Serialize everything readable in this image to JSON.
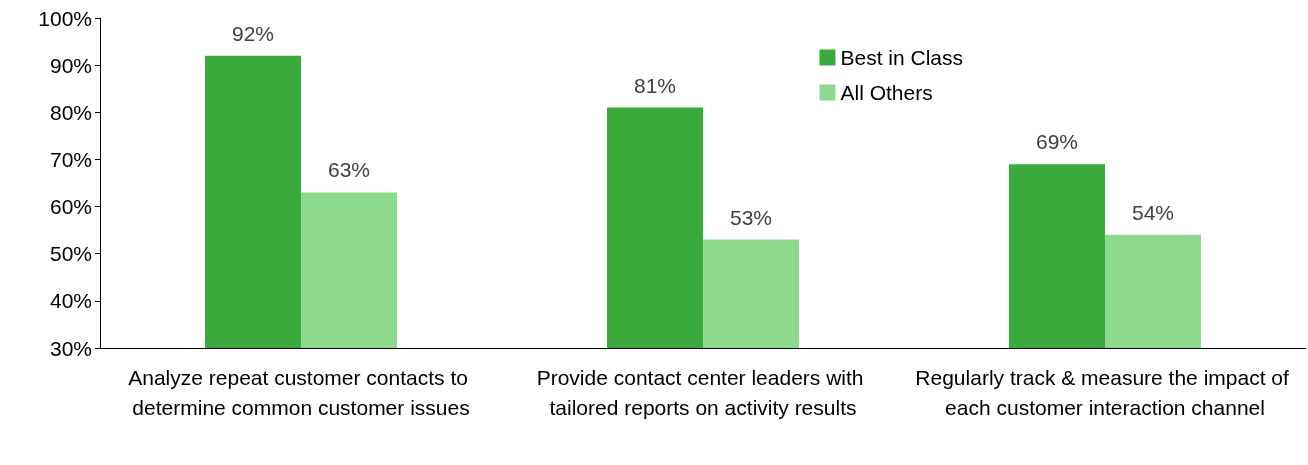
{
  "chart_data": {
    "type": "bar",
    "categories": [
      "Analyze repeat customer contacts to determine common customer issues",
      "Provide contact center leaders with tailored reports on activity results",
      "Regularly track & measure the impact of each customer interaction channel"
    ],
    "series": [
      {
        "name": "Best in Class",
        "color": "#3aaa3c",
        "values": [
          92,
          81,
          69
        ],
        "value_labels": [
          "92%",
          "81%",
          "69%"
        ]
      },
      {
        "name": "All Others",
        "color": "#8dd98d",
        "values": [
          63,
          53,
          54
        ],
        "value_labels": [
          "63%",
          "53%",
          "54%"
        ]
      }
    ],
    "ylim": [
      30,
      100
    ],
    "yticks": [
      {
        "value": 30,
        "label": "30%"
      },
      {
        "value": 40,
        "label": "40%"
      },
      {
        "value": 50,
        "label": "50%"
      },
      {
        "value": 60,
        "label": "60%"
      },
      {
        "value": 70,
        "label": "70%"
      },
      {
        "value": 80,
        "label": "80%"
      },
      {
        "value": 90,
        "label": "90%"
      },
      {
        "value": 100,
        "label": "100%"
      }
    ],
    "grid": false,
    "legend": "top right"
  }
}
